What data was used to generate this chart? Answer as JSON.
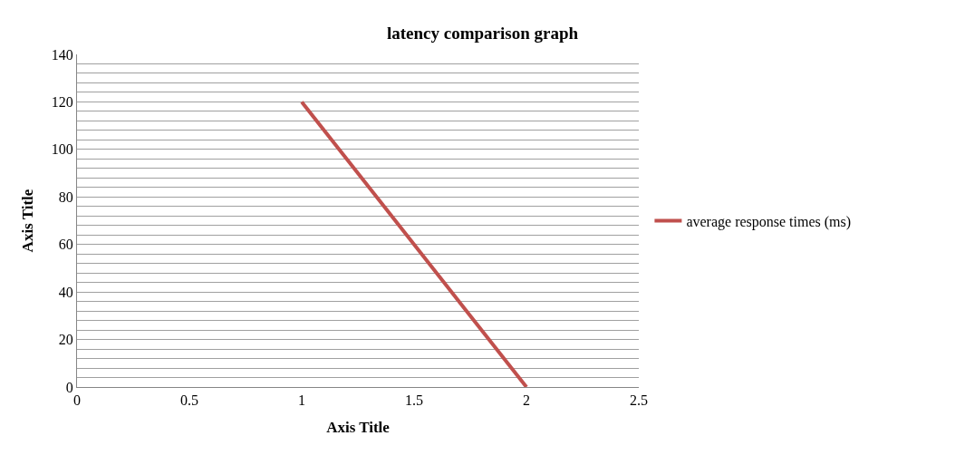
{
  "chart_data": {
    "type": "line",
    "title": "latency comparison graph",
    "xlabel": "Axis Title",
    "ylabel": "Axis Title",
    "x": [
      1,
      2
    ],
    "series": [
      {
        "name": "average response times (ms)",
        "color": "#c0504d",
        "values": [
          120,
          0
        ]
      }
    ],
    "xlim": [
      0,
      2.5
    ],
    "xticks": [
      0,
      0.5,
      1,
      1.5,
      2,
      2.5
    ],
    "ylim": [
      0,
      140
    ],
    "yticks": [
      0,
      {
        "value": 4,
        "label": null
      },
      {
        "value": 8,
        "label": null
      },
      {
        "value": 12,
        "label": null
      },
      {
        "value": 16,
        "label": null
      },
      20,
      {
        "value": 24,
        "label": null
      },
      {
        "value": 28,
        "label": null
      },
      {
        "value": 32,
        "label": null
      },
      {
        "value": 36,
        "label": null
      },
      40,
      {
        "value": 44,
        "label": null
      },
      {
        "value": 48,
        "label": null
      },
      {
        "value": 52,
        "label": null
      },
      {
        "value": 56,
        "label": null
      },
      60,
      {
        "value": 64,
        "label": null
      },
      {
        "value": 68,
        "label": null
      },
      {
        "value": 72,
        "label": null
      },
      {
        "value": 76,
        "label": null
      },
      80,
      {
        "value": 84,
        "label": null
      },
      {
        "value": 88,
        "label": null
      },
      {
        "value": 92,
        "label": null
      },
      {
        "value": 96,
        "label": null
      },
      100,
      {
        "value": 104,
        "label": null
      },
      {
        "value": 108,
        "label": null
      },
      {
        "value": 112,
        "label": null
      },
      {
        "value": 116,
        "label": null
      },
      120,
      {
        "value": 124,
        "label": null
      },
      {
        "value": 128,
        "label": null
      },
      {
        "value": 132,
        "label": null
      },
      {
        "value": 136,
        "label": null
      },
      140
    ],
    "grid": "y",
    "legend": "right",
    "marker": "none",
    "line_style": "solid"
  }
}
